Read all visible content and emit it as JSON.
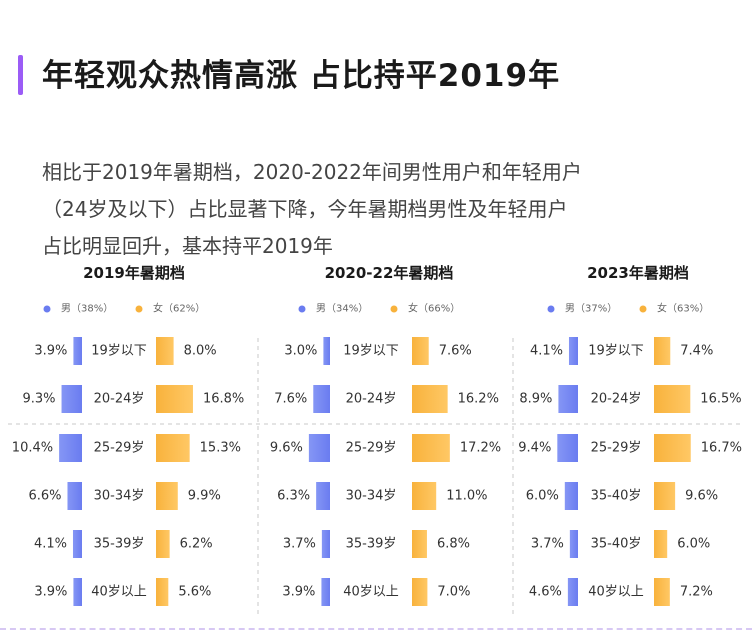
{
  "header": {
    "accent_color": "#9b5cf6",
    "title": "年轻观众热情高涨 占比持平2019年",
    "subtitle_lines": [
      "相比于2019年暑期档，2020-2022年间男性用户和年轻用户",
      "（24岁及以下）占比显著下降，今年暑期档男性及年轻用户",
      "占比明显回升，基本持平2019年"
    ]
  },
  "colors": {
    "male": "#6a7cf0",
    "female": "#f8b23c",
    "grid": "#c9c9c9"
  },
  "chart_data": [
    {
      "type": "bar",
      "title": "2019年暑期档",
      "series": [
        {
          "name": "男（38%）",
          "values": [
            3.9,
            9.3,
            10.4,
            6.6,
            4.1,
            3.9
          ]
        },
        {
          "name": "女（62%）",
          "values": [
            8.0,
            16.8,
            15.3,
            9.9,
            6.2,
            5.6
          ]
        }
      ],
      "categories": [
        "19岁以下",
        "20-24岁",
        "25-29岁",
        "30-34岁",
        "35-39岁",
        "40岁以上"
      ],
      "value_labels": {
        "male": [
          "3.9%",
          "9.3%",
          "10.4%",
          "6.6%",
          "4.1%",
          "3.9%"
        ],
        "female": [
          "8.0%",
          "16.8%",
          "15.3%",
          "9.9%",
          "6.2%",
          "5.6%"
        ]
      }
    },
    {
      "type": "bar",
      "title": "2020-22年暑期档",
      "series": [
        {
          "name": "男（34%）",
          "values": [
            3.0,
            7.6,
            9.6,
            6.3,
            3.7,
            3.9
          ]
        },
        {
          "name": "女（66%）",
          "values": [
            7.6,
            16.2,
            17.2,
            11.0,
            6.8,
            7.0
          ]
        }
      ],
      "categories": [
        "19岁以下",
        "20-24岁",
        "25-29岁",
        "30-34岁",
        "35-39岁",
        "40岁以上"
      ],
      "value_labels": {
        "male": [
          "3.0%",
          "7.6%",
          "9.6%",
          "6.3%",
          "3.7%",
          "3.9%"
        ],
        "female": [
          "7.6%",
          "16.2%",
          "17.2%",
          "11.0%",
          "6.8%",
          "7.0%"
        ]
      }
    },
    {
      "type": "bar",
      "title": "2023年暑期档",
      "series": [
        {
          "name": "男（37%）",
          "values": [
            4.1,
            8.9,
            9.4,
            6.0,
            3.7,
            4.6
          ]
        },
        {
          "name": "女（63%）",
          "values": [
            7.4,
            16.5,
            16.7,
            9.6,
            6.0,
            7.2
          ]
        }
      ],
      "categories": [
        "19岁以下",
        "20-24岁",
        "25-29岁",
        "35-40岁",
        "35-40岁",
        "40岁以上"
      ],
      "value_labels": {
        "male": [
          "4.1%",
          "8.9%",
          "9.4%",
          "6.0%",
          "3.7%",
          "4.6%"
        ],
        "female": [
          "7.4%",
          "16.5%",
          "16.7%",
          "9.6%",
          "6.0%",
          "7.2%"
        ]
      }
    }
  ]
}
